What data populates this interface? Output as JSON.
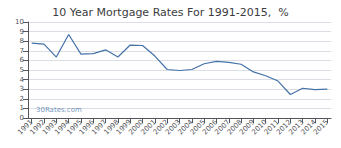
{
  "chart_data": {
    "type": "line",
    "title": "10 Year Mortgage Rates For 1991-2015,  %",
    "x": [
      1991,
      1992,
      1993,
      1994,
      1995,
      1996,
      1997,
      1998,
      1999,
      2000,
      2001,
      2002,
      2003,
      2004,
      2005,
      2006,
      2007,
      2008,
      2009,
      2010,
      2011,
      2012,
      2013,
      2014,
      2015
    ],
    "values": [
      7.8,
      7.7,
      6.35,
      8.7,
      6.65,
      6.7,
      7.1,
      6.35,
      7.6,
      7.55,
      6.45,
      5.05,
      4.95,
      5.05,
      5.65,
      5.9,
      5.8,
      5.6,
      4.8,
      4.4,
      3.85,
      2.45,
      3.1,
      2.95,
      3.0
    ],
    "color": "#4472a8",
    "xlim": [
      1990.7,
      2015.3
    ],
    "xticks": [
      1991,
      1992,
      1993,
      1994,
      1995,
      1996,
      1997,
      1998,
      1999,
      2000,
      2001,
      2002,
      2003,
      2004,
      2005,
      2006,
      2007,
      2008,
      2009,
      2010,
      2011,
      2012,
      2013,
      2014,
      2015
    ],
    "ylim": [
      0,
      10
    ],
    "yticks": [
      0,
      1,
      2,
      3,
      4,
      5,
      6,
      7,
      8,
      9,
      10
    ],
    "grid": true,
    "annotations": [
      "30Rates.com"
    ]
  }
}
